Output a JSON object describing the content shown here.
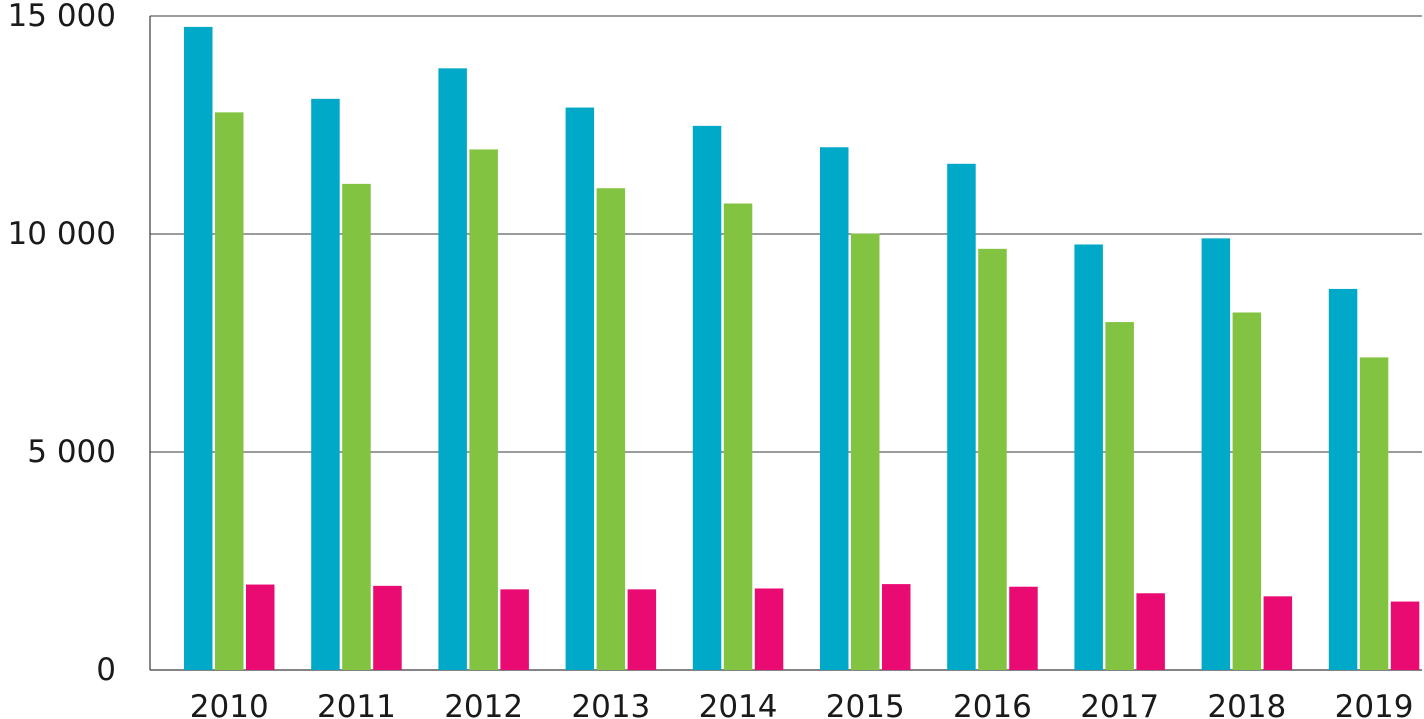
{
  "chart_data": {
    "type": "bar",
    "title": "",
    "xlabel": "",
    "ylabel": "",
    "categories": [
      "2010",
      "2011",
      "2012",
      "2013",
      "2014",
      "2015",
      "2016",
      "2017",
      "2018",
      "2019"
    ],
    "series": [
      {
        "color": "#00a9c7",
        "values": [
          14750,
          13100,
          13800,
          12900,
          12480,
          11990,
          11610,
          9760,
          9900,
          8740
        ]
      },
      {
        "color": "#82c341",
        "values": [
          12790,
          11150,
          11940,
          11050,
          10700,
          10010,
          9660,
          7980,
          8200,
          7170
        ]
      },
      {
        "color": "#ea0b72",
        "values": [
          1960,
          1930,
          1850,
          1850,
          1870,
          1970,
          1910,
          1760,
          1690,
          1570
        ]
      }
    ],
    "ylim": [
      0,
      15000
    ],
    "yticks": [
      0,
      5000,
      10000,
      15000
    ],
    "ytick_labels": [
      "0",
      "5 000",
      "10 000",
      "15 000"
    ],
    "grid": true,
    "legend": "none"
  }
}
